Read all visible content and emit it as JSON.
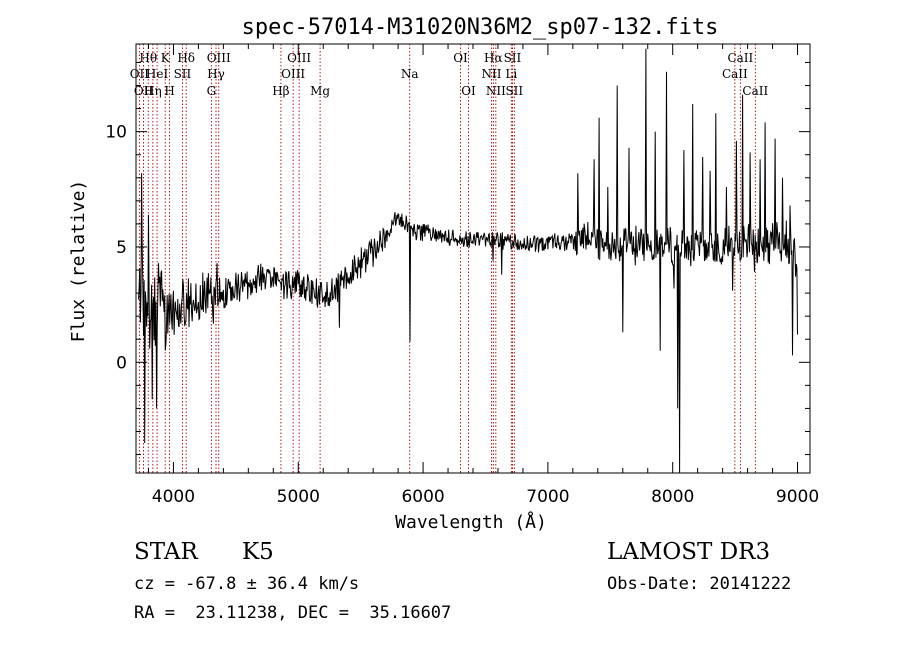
{
  "chart_data": {
    "type": "line",
    "title": "spec-57014-M31020N36M2_sp07-132.fits",
    "xlabel": "Wavelength (Å)",
    "ylabel": "Flux (relative)",
    "xlim": [
      3700,
      9100
    ],
    "ylim": [
      -4.8,
      13.8
    ],
    "x_ticks": [
      4000,
      5000,
      6000,
      7000,
      8000,
      9000
    ],
    "y_ticks": [
      0,
      5,
      10
    ],
    "line_color": "#000000",
    "marker_color": "#aa0000",
    "spectrum_seed": 57014,
    "continuum_nodes": {
      "x": [
        3700,
        3800,
        3900,
        4000,
        4150,
        4300,
        4400,
        4500,
        4700,
        4850,
        5000,
        5150,
        5250,
        5400,
        5550,
        5700,
        5800,
        5950,
        6100,
        6300,
        6500,
        6700,
        6900,
        7100,
        7300,
        7500,
        7700,
        7900,
        8100,
        8300,
        8500,
        8700,
        8900,
        9000
      ],
      "y": [
        3.0,
        2.4,
        2.1,
        2.3,
        2.6,
        2.8,
        3.0,
        3.3,
        3.6,
        3.5,
        3.4,
        3.0,
        2.9,
        3.8,
        4.6,
        5.5,
        6.3,
        5.7,
        5.5,
        5.3,
        5.4,
        5.2,
        5.1,
        5.2,
        5.3,
        5.1,
        5.2,
        5.1,
        5.0,
        5.0,
        5.1,
        5.0,
        5.2,
        4.6
      ]
    },
    "spikes": [
      {
        "x": 3745,
        "y": 8.2
      },
      {
        "x": 3770,
        "y": -3.5
      },
      {
        "x": 3800,
        "y": 6.4
      },
      {
        "x": 3830,
        "y": -1.6
      },
      {
        "x": 3865,
        "y": -2.0
      },
      {
        "x": 3880,
        "y": 4.3
      },
      {
        "x": 4350,
        "y": 4.3
      },
      {
        "x": 5330,
        "y": 1.5
      },
      {
        "x": 5895,
        "y": 0.9
      },
      {
        "x": 6560,
        "y": 4.4
      },
      {
        "x": 6630,
        "y": 3.8
      },
      {
        "x": 7240,
        "y": 8.2
      },
      {
        "x": 7370,
        "y": 8.8
      },
      {
        "x": 7410,
        "y": 10.6
      },
      {
        "x": 7480,
        "y": 7.6
      },
      {
        "x": 7555,
        "y": 12.0
      },
      {
        "x": 7600,
        "y": 1.3
      },
      {
        "x": 7650,
        "y": 9.3
      },
      {
        "x": 7700,
        "y": 4.2
      },
      {
        "x": 7785,
        "y": 13.6
      },
      {
        "x": 7860,
        "y": 10.0
      },
      {
        "x": 7900,
        "y": 0.5
      },
      {
        "x": 7950,
        "y": 12.6
      },
      {
        "x": 8010,
        "y": 3.2
      },
      {
        "x": 8040,
        "y": -2.0
      },
      {
        "x": 8055,
        "y": -4.8
      },
      {
        "x": 8090,
        "y": 9.2
      },
      {
        "x": 8160,
        "y": 11.2
      },
      {
        "x": 8240,
        "y": 8.9
      },
      {
        "x": 8300,
        "y": 8.3
      },
      {
        "x": 8345,
        "y": 10.8
      },
      {
        "x": 8430,
        "y": 7.6
      },
      {
        "x": 8480,
        "y": 3.1
      },
      {
        "x": 8510,
        "y": 9.6
      },
      {
        "x": 8560,
        "y": 11.6
      },
      {
        "x": 8620,
        "y": 9.1
      },
      {
        "x": 8700,
        "y": 8.8
      },
      {
        "x": 8740,
        "y": 10.4
      },
      {
        "x": 8820,
        "y": 9.7
      },
      {
        "x": 8880,
        "y": 8.0
      },
      {
        "x": 8940,
        "y": 6.8
      },
      {
        "x": 8960,
        "y": 0.3
      },
      {
        "x": 9000,
        "y": 1.2
      }
    ],
    "lines": [
      {
        "x": 3727,
        "label": "OII",
        "row": 2
      },
      {
        "x": 3760,
        "label": "OII",
        "row": 3
      },
      {
        "x": 3798,
        "label": "Hθ",
        "row": 1
      },
      {
        "x": 3835,
        "label": "Hη",
        "row": 3
      },
      {
        "x": 3869,
        "label": "HeI",
        "row": 2
      },
      {
        "x": 3934,
        "label": "K",
        "row": 1
      },
      {
        "x": 3969,
        "label": "H",
        "row": 3
      },
      {
        "x": 4072,
        "label": "SII",
        "row": 2
      },
      {
        "x": 4102,
        "label": "Hδ",
        "row": 1
      },
      {
        "x": 4304,
        "label": "G",
        "row": 3
      },
      {
        "x": 4341,
        "label": "Hγ",
        "row": 2
      },
      {
        "x": 4363,
        "label": "OIII",
        "row": 1
      },
      {
        "x": 4861,
        "label": "Hβ",
        "row": 3
      },
      {
        "x": 4959,
        "label": "OIII",
        "row": 2
      },
      {
        "x": 5007,
        "label": "OIII",
        "row": 1
      },
      {
        "x": 5175,
        "label": "Mg",
        "row": 3
      },
      {
        "x": 5893,
        "label": "Na",
        "row": 2
      },
      {
        "x": 6300,
        "label": "OI",
        "row": 1
      },
      {
        "x": 6364,
        "label": "OI",
        "row": 3
      },
      {
        "x": 6548,
        "label": "NII",
        "row": 2
      },
      {
        "x": 6563,
        "label": "Hα",
        "row": 1
      },
      {
        "x": 6583,
        "label": "NII",
        "row": 3
      },
      {
        "x": 6707,
        "label": "Li",
        "row": 2
      },
      {
        "x": 6716,
        "label": "SII",
        "row": 1
      },
      {
        "x": 6731,
        "label": "SII",
        "row": 3
      },
      {
        "x": 8498,
        "label": "CaII",
        "row": 2
      },
      {
        "x": 8542,
        "label": "CaII",
        "row": 1
      },
      {
        "x": 8662,
        "label": "CaII",
        "row": 3
      }
    ]
  },
  "footer": {
    "object_class": "STAR",
    "subclass": "K5",
    "survey": "LAMOST DR3",
    "velocity": "cz = -67.8 ± 36.4 km/s",
    "obs_date": "Obs-Date: 20141222",
    "coords": "RA =  23.11238, DEC =  35.16607"
  }
}
